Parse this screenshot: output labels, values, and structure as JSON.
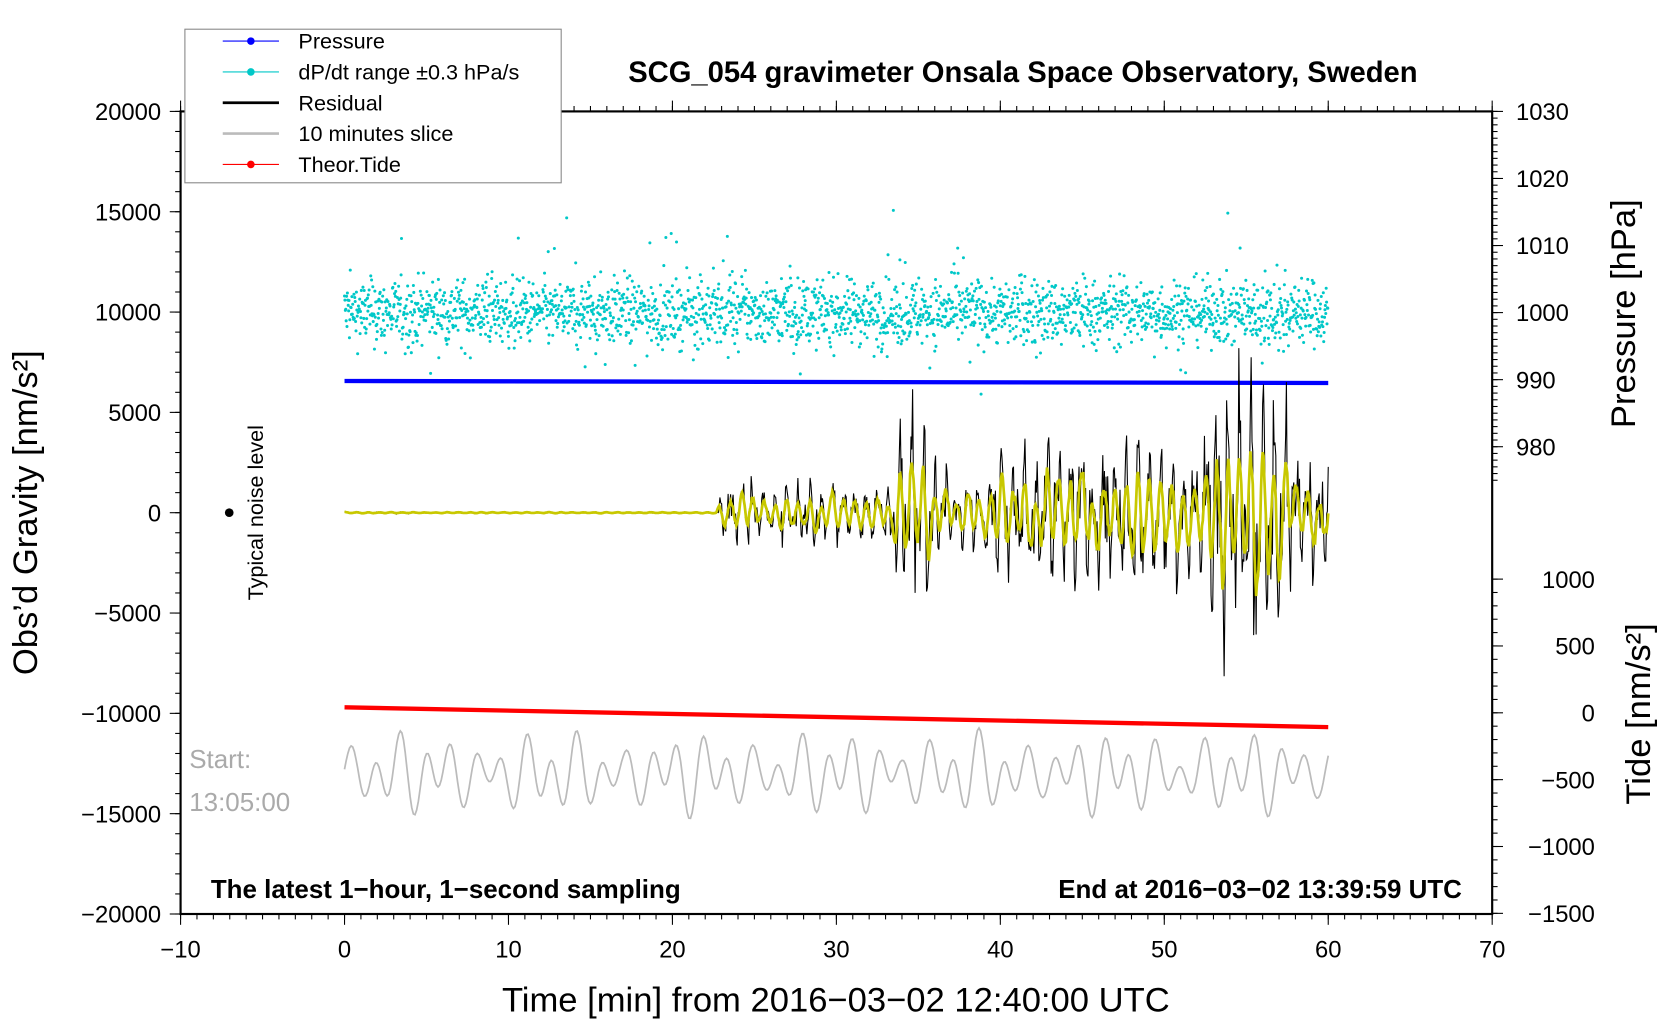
{
  "chart_data": {
    "type": "line",
    "title": "SCG_054 gravimeter Onsala Space Observatory, Sweden",
    "xlabel": "Time [min] from 2016−03−02 12:40:00 UTC",
    "ylabel_left": "Obs’d Gravity [nm/s²]",
    "ylabel_right_top": "Pressure [hPa]",
    "ylabel_right_bottom": "Tide [nm/s²]",
    "xlim": [
      -10,
      70
    ],
    "ylim_left": [
      -20000,
      20000
    ],
    "ylim_pressure": [
      950,
      1030
    ],
    "ylim_tide": [
      -1500,
      1500
    ],
    "x_ticks": [
      "−10",
      "0",
      "10",
      "20",
      "30",
      "40",
      "50",
      "60",
      "70"
    ],
    "y_left_ticks": [
      "20000",
      "15000",
      "10000",
      "5000",
      "0",
      "−5000",
      "−10000",
      "−15000",
      "−20000"
    ],
    "y_pressure_ticks": [
      "1030",
      "1020",
      "1010",
      "1000",
      "990",
      "980"
    ],
    "y_tide_ticks": [
      "1000",
      "500",
      "0",
      "−500",
      "−1000",
      "−1500"
    ],
    "legend": {
      "position": "top-left",
      "entries": [
        {
          "name": "Pressure",
          "color": "#0000ff",
          "marker": "dot"
        },
        {
          "name": "dP/dt range ±0.3 hPa/s",
          "color": "#00c8c8",
          "marker": "dot"
        },
        {
          "name": "Residual",
          "color": "#000000",
          "marker": "line"
        },
        {
          "name": "10 minutes slice",
          "color": "#bbbbbb",
          "marker": "line"
        },
        {
          "name": "Theor.Tide",
          "color": "#ff0000",
          "marker": "dot"
        }
      ]
    },
    "series": {
      "pressure": {
        "axis": "pressure",
        "x": [
          0,
          60
        ],
        "values": [
          989.8,
          989.5
        ],
        "color": "#0000ff"
      },
      "dpdt": {
        "axis": "left",
        "x_range": [
          0,
          60
        ],
        "center": 10000,
        "spread": 800,
        "color": "#00c8c8"
      },
      "tide": {
        "axis": "tide",
        "x": [
          0,
          60
        ],
        "values": [
          41,
          -107
        ],
        "color": "#ff0000"
      },
      "residual": {
        "axis": "left",
        "x_range": [
          0,
          60
        ],
        "color": "#000000",
        "filtered_color": "#c8c800",
        "envelope_minutes": [
          0,
          22.8,
          23,
          33,
          34,
          35,
          36,
          37,
          39,
          40,
          41,
          47,
          48,
          52,
          53,
          57,
          58,
          60
        ],
        "envelope_amplitude": [
          40,
          40,
          1300,
          1400,
          3500,
          6000,
          3500,
          1600,
          1600,
          3000,
          3200,
          3000,
          3500,
          2800,
          6000,
          6000,
          3000,
          3000
        ]
      },
      "slice": {
        "axis": "left",
        "x_range": [
          0,
          60
        ],
        "center": -13000,
        "amplitude": 1600,
        "color": "#bbbbbb"
      }
    },
    "noise_marker": {
      "x": -7,
      "y": 0,
      "label": "Typical noise level"
    },
    "annotations": {
      "bottom_left": "The latest 1−hour, 1−second sampling",
      "bottom_right": "End at 2016−03−02 13:39:59 UTC",
      "start_label": "Start:",
      "start_time": "13:05:00"
    }
  }
}
